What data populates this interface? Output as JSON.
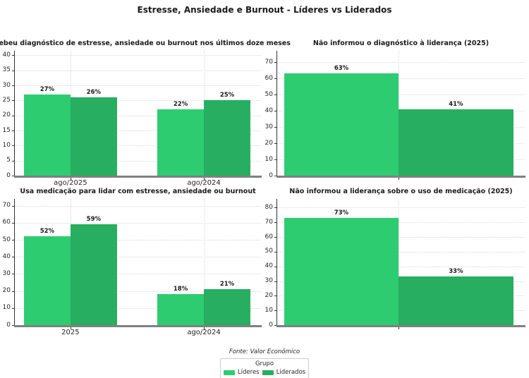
{
  "title": "Estresse, Ansiedade e Burnout - Líderes vs Liderados",
  "footer": {
    "source": "Fonte: Valor Econômico"
  },
  "legend": {
    "title": "Grupo",
    "position": "bottom center",
    "entries": [
      {
        "label": "Líderes",
        "color": "#2ecc71"
      },
      {
        "label": "Liderados",
        "color": "#27ae60"
      }
    ]
  },
  "colors": {
    "lideres": "#2ecc71",
    "liderados": "#27ae60",
    "grid": "#d9d9d9",
    "left_spine": "#333333",
    "bottom_spine": "#808080",
    "text": "#262626"
  },
  "chart_data": [
    {
      "type": "bar",
      "title": "Recebeu diagnóstico de estresse, ansiedade ou burnout nos últimos doze meses",
      "categories": [
        "ago/2025",
        "ago/2024"
      ],
      "series": [
        {
          "name": "Líderes",
          "values": [
            27,
            22
          ]
        },
        {
          "name": "Liderados",
          "values": [
            26,
            25
          ]
        }
      ],
      "yticks": [
        0,
        5,
        10,
        15,
        20,
        25,
        30,
        35,
        40
      ],
      "ylim": [
        0,
        41.5
      ],
      "grid": true,
      "value_suffix": "%"
    },
    {
      "type": "bar",
      "title": "Não informou o diagnóstico à liderança (2025)",
      "categories": [
        ""
      ],
      "series": [
        {
          "name": "Líderes",
          "values": [
            63
          ]
        },
        {
          "name": "Liderados",
          "values": [
            41
          ]
        }
      ],
      "yticks": [
        0,
        10,
        20,
        30,
        40,
        50,
        60,
        70
      ],
      "ylim": [
        0,
        77
      ],
      "grid": true,
      "value_suffix": "%"
    },
    {
      "type": "bar",
      "title": "Usa medicação para lidar com estresse, ansiedade ou burnout",
      "categories": [
        "2025",
        "ago/2024"
      ],
      "series": [
        {
          "name": "Líderes",
          "values": [
            52,
            18
          ]
        },
        {
          "name": "Liderados",
          "values": [
            59,
            21
          ]
        }
      ],
      "yticks": [
        0,
        10,
        20,
        30,
        40,
        50,
        60,
        70
      ],
      "ylim": [
        0,
        74
      ],
      "grid": true,
      "value_suffix": "%"
    },
    {
      "type": "bar",
      "title": "Não informou a liderança sobre o uso de medicação (2025)",
      "categories": [
        ""
      ],
      "series": [
        {
          "name": "Líderes",
          "values": [
            73
          ]
        },
        {
          "name": "Liderados",
          "values": [
            33
          ]
        }
      ],
      "yticks": [
        0,
        10,
        20,
        30,
        40,
        50,
        60,
        70,
        80
      ],
      "ylim": [
        0,
        86
      ],
      "grid": true,
      "value_suffix": "%"
    }
  ]
}
